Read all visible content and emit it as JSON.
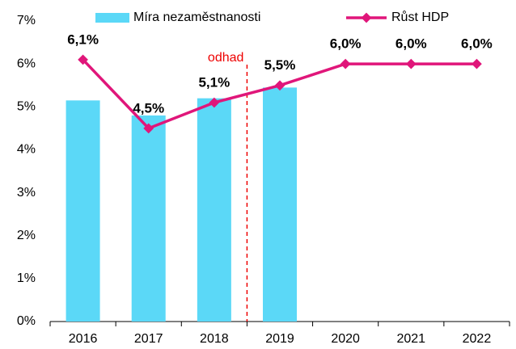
{
  "chart_data": {
    "type": "bar-line",
    "categories": [
      "2016",
      "2017",
      "2018",
      "2019",
      "2020",
      "2021",
      "2022"
    ],
    "series": [
      {
        "name": "Míra nezaměstnanosti",
        "type": "bar",
        "color": "#5bd8f7",
        "values": [
          5.15,
          4.8,
          5.2,
          5.45,
          null,
          null,
          null
        ]
      },
      {
        "name": "Růst HDP",
        "type": "line",
        "color": "#e0167a",
        "values": [
          6.1,
          4.5,
          5.1,
          5.5,
          6.0,
          6.0,
          6.0
        ],
        "value_labels": [
          "6,1%",
          "4,5%",
          "5,1%",
          "5,5%",
          "6,0%",
          "6,0%",
          "6,0%"
        ]
      }
    ],
    "annotation": "odhad",
    "ylim": [
      0,
      7
    ],
    "yticks": [
      {
        "value": 0,
        "label": "0%"
      },
      {
        "value": 1,
        "label": "1%"
      },
      {
        "value": 2,
        "label": "2%"
      },
      {
        "value": 3,
        "label": "3%"
      },
      {
        "value": 4,
        "label": "4%"
      },
      {
        "value": 5,
        "label": "5%"
      },
      {
        "value": 6,
        "label": "6%"
      },
      {
        "value": 7,
        "label": "7%"
      }
    ],
    "grid": false
  }
}
